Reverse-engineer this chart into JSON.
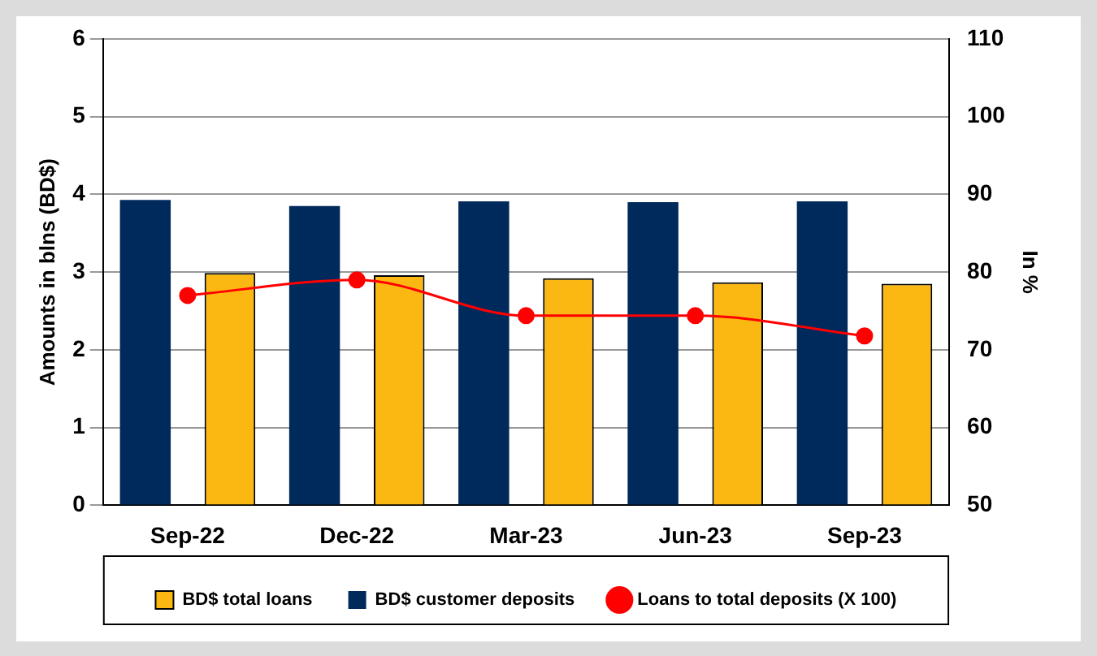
{
  "chart_data": {
    "type": "bar",
    "ylabel": "Amounts in blns (BD$)",
    "y2label": "In %",
    "categories": [
      "Sep-22",
      "Dec-22",
      "Mar-23",
      "Jun-23",
      "Sep-23"
    ],
    "series": [
      {
        "name": "BD$ total loans",
        "color": "#fbb813",
        "values": [
          2.99,
          2.96,
          2.92,
          2.87,
          2.85
        ]
      },
      {
        "name": "BD$ customer deposits",
        "color": "#002a5c",
        "values": [
          3.93,
          3.85,
          3.91,
          3.9,
          3.91
        ]
      },
      {
        "name": "Loans to total deposits (X 100)",
        "type": "line",
        "axis": "y2",
        "color": "#ff0000",
        "values": [
          77.0,
          79.0,
          74.4,
          74.4,
          71.8
        ]
      }
    ],
    "ylim": [
      0,
      6
    ],
    "yticks": [
      0,
      1,
      2,
      3,
      4,
      5,
      6
    ],
    "y2lim": [
      50,
      110
    ],
    "y2ticks": [
      50,
      60,
      70,
      80,
      90,
      100,
      110
    ],
    "grid": "y",
    "legend": "bottom",
    "marker": "circle",
    "line_style": "solid"
  }
}
